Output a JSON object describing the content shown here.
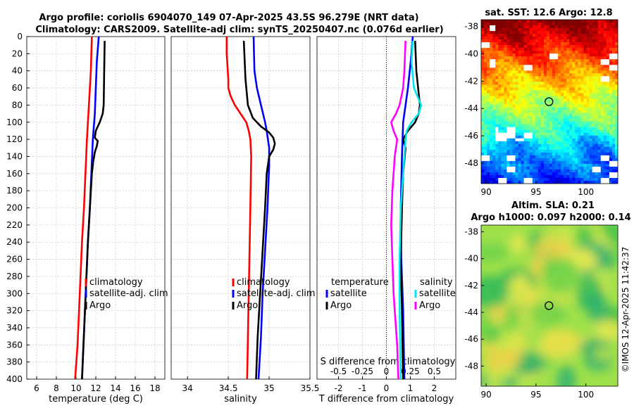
{
  "title_line1": "Argo profile: coriolis 6904070_149 07-Apr-2025 43.5S 96.279E (NRT data)",
  "title_line2": "Climatology: CARS2009. Satellite-adj clim: synTS_20250407.nc (0.076d earlier)",
  "sst_title": "sat. SST: 12.6 Argo: 12.8",
  "sla_title1": "Altim. SLA: 0.21",
  "sla_title2": "Argo h1000: 0.097 h2000: 0.14",
  "stamp": "©IMOS 12-Apr-2025 11:42:37",
  "colors": {
    "climatology": "#ff0000",
    "satellite": "#0000ff",
    "argo": "#000000",
    "sal_satellite": "#00e5ee",
    "sal_argo": "#ff00ff"
  },
  "chart_data": [
    {
      "type": "line",
      "name": "temperature",
      "xlabel": "temperature (deg C)",
      "xlim": [
        5,
        19
      ],
      "ylim": [
        400,
        0
      ],
      "xticks": [
        6,
        8,
        10,
        12,
        14,
        16,
        18
      ],
      "yticks": [
        0,
        20,
        40,
        60,
        80,
        100,
        120,
        140,
        160,
        180,
        200,
        220,
        240,
        260,
        280,
        300,
        320,
        340,
        360,
        380,
        400
      ],
      "grid": true,
      "legend": {
        "position": "lower-right",
        "entries": [
          "climatology",
          "satellite-adj. clim",
          "Argo"
        ]
      },
      "series": [
        {
          "name": "climatology",
          "depth": [
            0,
            40,
            80,
            120,
            160,
            200,
            240,
            280,
            320,
            360,
            400
          ],
          "values": [
            11.6,
            11.5,
            11.3,
            11.1,
            10.95,
            10.8,
            10.6,
            10.45,
            10.3,
            10.15,
            9.9
          ]
        },
        {
          "name": "satellite-adj. clim",
          "depth": [
            0,
            30,
            60,
            90,
            120,
            160,
            200,
            240,
            280,
            320,
            360,
            400
          ],
          "values": [
            12.3,
            12.1,
            12.0,
            11.9,
            11.7,
            11.55,
            11.4,
            11.2,
            11.05,
            10.9,
            10.75,
            10.6
          ]
        },
        {
          "name": "Argo",
          "depth": [
            5,
            40,
            80,
            90,
            100,
            110,
            118,
            122,
            128,
            135,
            145,
            160,
            200,
            240,
            280,
            320,
            360,
            400
          ],
          "values": [
            12.9,
            12.85,
            12.8,
            12.7,
            12.4,
            12.0,
            11.9,
            12.2,
            12.1,
            11.9,
            11.75,
            11.6,
            11.4,
            11.2,
            11.05,
            10.9,
            10.75,
            10.6
          ]
        }
      ]
    },
    {
      "type": "line",
      "name": "salinity",
      "xlabel": "salinity",
      "xlim": [
        33.8,
        35.5
      ],
      "ylim": [
        400,
        0
      ],
      "xticks": [
        34,
        34.5,
        35,
        35.5
      ],
      "grid": true,
      "legend": {
        "position": "lower-right",
        "entries": [
          "climatology",
          "satellite-adj. clim",
          "Argo"
        ]
      },
      "series": [
        {
          "name": "climatology",
          "depth": [
            0,
            40,
            60,
            70,
            80,
            90,
            100,
            110,
            120,
            140,
            200,
            300,
            400
          ],
          "values": [
            34.49,
            34.5,
            34.5,
            34.53,
            34.58,
            34.65,
            34.72,
            34.75,
            34.77,
            34.78,
            34.77,
            34.75,
            34.73
          ],
          "note": "surface to ~60 m near 34.49"
        },
        {
          "name": "satellite-adj. clim",
          "depth": [
            0,
            40,
            60,
            80,
            100,
            110,
            130,
            150,
            200,
            250,
            300,
            350,
            400
          ],
          "values": [
            34.8,
            34.82,
            34.85,
            34.9,
            34.95,
            34.97,
            35.0,
            35.0,
            34.98,
            34.95,
            34.92,
            34.9,
            34.87
          ],
          "note": "near 34.8 at surface"
        },
        {
          "name": "Argo",
          "depth": [
            5,
            50,
            80,
            95,
            105,
            112,
            118,
            125,
            132,
            140,
            160,
            200,
            250,
            300,
            350,
            400
          ],
          "values": [
            34.7,
            34.72,
            34.75,
            34.8,
            34.9,
            35.0,
            35.05,
            35.07,
            35.05,
            35.0,
            34.97,
            34.95,
            34.92,
            34.89,
            34.86,
            34.84
          ]
        }
      ]
    },
    {
      "type": "line",
      "name": "difference",
      "xlabel": "T difference from climatology",
      "xlabel_top": "S difference from climatology",
      "xlim": [
        -2.9,
        2.9
      ],
      "ylim": [
        400,
        0
      ],
      "xticks": [
        -2,
        -1,
        0,
        1,
        2
      ],
      "xticks_top": [
        -0.5,
        -0.25,
        0,
        0.25,
        0.5
      ],
      "grid": true,
      "legend_left": {
        "title": "temperature",
        "entries": [
          "satellite",
          "Argo"
        ]
      },
      "legend_right": {
        "title": "salinity",
        "entries": [
          "satellite",
          "Argo"
        ]
      },
      "series": [
        {
          "name": "temperature satellite",
          "depth": [
            0,
            20,
            60,
            100,
            140,
            200,
            260,
            320,
            400
          ],
          "values": [
            1.1,
            1.05,
            0.9,
            0.7,
            0.65,
            0.6,
            0.62,
            0.7,
            0.75
          ]
        },
        {
          "name": "temperature Argo",
          "depth": [
            5,
            40,
            80,
            90,
            100,
            110,
            120,
            130,
            160,
            200,
            260,
            320,
            400
          ],
          "values": [
            1.2,
            1.25,
            1.4,
            1.35,
            1.2,
            0.9,
            0.7,
            0.8,
            0.7,
            0.65,
            0.6,
            0.65,
            0.7
          ]
        },
        {
          "name": "salinity satellite",
          "depth": [
            5,
            30,
            60,
            80,
            90,
            100,
            110,
            120,
            140,
            160,
            200,
            260,
            320,
            400
          ],
          "values": [
            1.1,
            1.05,
            1.15,
            1.45,
            1.35,
            1.05,
            0.85,
            0.8,
            0.75,
            0.7,
            0.6,
            0.55,
            0.55,
            0.6
          ],
          "note": "S axis scaled: 1.0 unit = 0.25 psu"
        },
        {
          "name": "salinity Argo",
          "depth": [
            5,
            40,
            60,
            80,
            90,
            100,
            110,
            120,
            140,
            180,
            220,
            260,
            300,
            360,
            400
          ],
          "values": [
            0.8,
            0.75,
            0.7,
            0.55,
            0.4,
            0.2,
            0.3,
            0.45,
            0.35,
            0.25,
            0.2,
            0.25,
            0.3,
            0.45,
            0.5
          ]
        }
      ]
    },
    {
      "type": "heatmap",
      "name": "sst-map",
      "title": "sat. SST: 12.6 Argo: 12.8",
      "xlim": [
        89.5,
        103.2
      ],
      "ylim": [
        -49.5,
        -37.5
      ],
      "xticks": [
        90,
        95,
        100
      ],
      "yticks": [
        -38,
        -40,
        -42,
        -44,
        -46,
        -48
      ],
      "marker": {
        "lon": 96.3,
        "lat": -43.5
      }
    },
    {
      "type": "heatmap",
      "name": "sla-map",
      "title": "Altim. SLA: 0.21",
      "subtitle": "Argo h1000: 0.097 h2000: 0.14",
      "xlim": [
        89.5,
        103.2
      ],
      "ylim": [
        -49.5,
        -37.5
      ],
      "xticks": [
        90,
        95,
        100
      ],
      "yticks": [
        -38,
        -40,
        -42,
        -44,
        -46,
        -48
      ],
      "marker": {
        "lon": 96.3,
        "lat": -43.5
      }
    }
  ]
}
